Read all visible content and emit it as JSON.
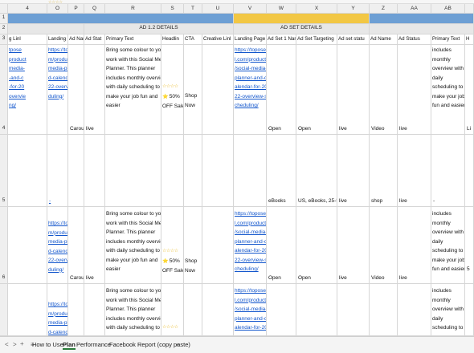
{
  "sheet": {
    "column_letters": [
      "4",
      "O",
      "P",
      "Q",
      "R",
      "S",
      "T",
      "U",
      "V",
      "W",
      "X",
      "Y",
      "Z",
      "AA",
      "AB",
      ""
    ],
    "row_numbers": [
      "1",
      "2",
      "3",
      "4",
      "5",
      "6"
    ],
    "group_headers": {
      "ad_1_2": "AD 1.2 DETAILS",
      "ad_set": "AD SET DETAILS"
    },
    "column_headers": [
      "g Linl",
      "Landing Page",
      "Ad Nan",
      "Ad Stat",
      "Primary Text",
      "Headlin",
      "CTA",
      "Creative Linl",
      "Landing Page",
      "Ad Set 1 Nar",
      "Ad Set Targeting",
      "Ad set statu",
      "Ad Name",
      "Ad Status",
      "Primary Text",
      "H"
    ],
    "rows": {
      "r4": {
        "n_link_lines": [
          "tpose",
          "product",
          "media-",
          "-and-c",
          "-for-20",
          "overvie",
          "ng/"
        ],
        "o_link_lines": [
          "https://topose",
          "m/product/social-",
          "media-planner-an",
          "d-calendar-for-20",
          "22-overview-sche",
          "duling/"
        ],
        "p": "Carousel",
        "q": "live",
        "r_lines": [
          "Bring some colour to your",
          "work with this Social Media",
          "Planner. This planner",
          "includes monthly overview",
          "with daily scheduling to",
          "make your job fun and",
          "easier"
        ],
        "s_stars": "☆☆☆☆",
        "s_lines": [
          "50%",
          "OFF Sale"
        ],
        "s_emoji": "⭐",
        "t_lines": [
          "Shop",
          "Now"
        ],
        "v_link_lines": [
          "https://topose",
          "l.com/product",
          "/social-media-",
          "planner-and-c",
          "alendar-for-20",
          "22-overview-s",
          "cheduling/"
        ],
        "w": "Open",
        "x": "Open",
        "y": "live",
        "z": "Video",
        "aa": "live",
        "ab_lines": [
          "includes",
          "monthly",
          "overview with",
          "daily",
          "scheduling to",
          "make your job",
          "fun and easier"
        ],
        "ac": "Li"
      },
      "r5": {
        "n": "",
        "o": "-",
        "w": "eBooks",
        "x": "US, eBooks, 25-55",
        "y": "live",
        "z": "shop",
        "aa": "live",
        "ab": "-"
      },
      "r6": {
        "o_link_lines": [
          "https://toposel.co",
          "m/product/social-",
          "media-planner-an",
          "d-calendar-for-20",
          "22-overview-sche",
          "duling/"
        ],
        "p": "Carousel",
        "q": "live",
        "r_lines": [
          "Bring some colour to your",
          "work with this Social Media",
          "Planner. This planner",
          "includes monthly overview",
          "with daily scheduling to",
          "make your job fun and",
          "easier"
        ],
        "s_stars": "☆☆☆☆",
        "s_lines": [
          "50%",
          "OFF Sale"
        ],
        "s_emoji": "⭐",
        "t_lines": [
          "Shop",
          "Now"
        ],
        "v_link_lines": [
          "https://topose",
          "l.com/product",
          "/social-media-",
          "planner-and-c",
          "alendar-for-20",
          "22-overview-s",
          "cheduling/"
        ],
        "w": "Open",
        "x": "Open",
        "y": "live",
        "z": "Video",
        "aa": "live",
        "ab_lines": [
          "includes",
          "monthly",
          "overview with",
          "daily",
          "scheduling to",
          "make your job",
          "fun and easier"
        ],
        "ac": "5"
      },
      "r7": {
        "o_link_lines": [
          "https://toposel.co",
          "m/product/social-",
          "media-planner-an",
          "d-calendar-for-20"
        ],
        "r_lines": [
          "Bring some colour to your",
          "work with this Social Media",
          "Planner. This planner",
          "includes monthly overview",
          "with daily scheduling to"
        ],
        "s_stars": "☆☆☆☆",
        "v_link_lines": [
          "https://topose",
          "l.com/product",
          "/social-media-",
          "planner-and-c",
          "alendar-for-20"
        ],
        "ab_lines": [
          "includes",
          "monthly",
          "overview with",
          "daily",
          "scheduling to"
        ]
      }
    }
  },
  "tabs": {
    "controls": [
      "<",
      ">",
      "+",
      "≡"
    ],
    "items": [
      "How to Use",
      "Plan",
      "Performance",
      "Facebook Report (copy paste)"
    ],
    "add": "+",
    "active_index": 1
  },
  "colors": {
    "band_blue": "#6d9fd4",
    "band_yellow": "#f2c744",
    "link": "#1155cc",
    "star": "#e8b822"
  },
  "toolbar_stars": "☆☆☆☆"
}
